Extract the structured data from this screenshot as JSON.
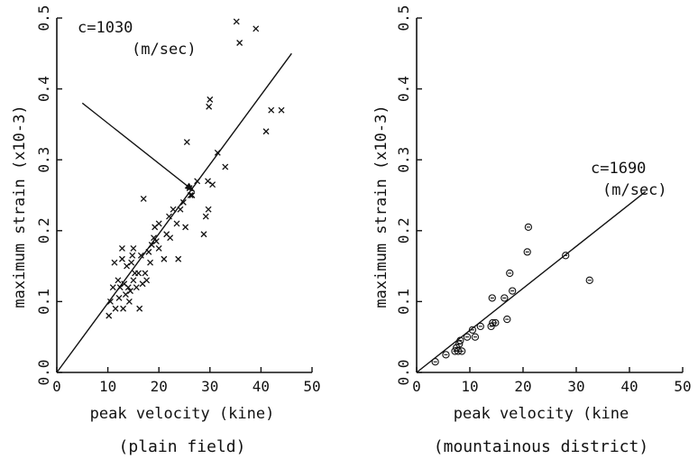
{
  "chart_data": [
    {
      "type": "scatter",
      "caption": "(plain field)",
      "xlabel": "peak velocity (kine)",
      "ylabel": "maximum strain (x10-3)",
      "xlim": [
        0,
        50
      ],
      "ylim": [
        0,
        0.5
      ],
      "xticks": [
        {
          "value": 0,
          "label": "0"
        },
        {
          "value": 10,
          "label": "10"
        },
        {
          "value": 20,
          "label": "20"
        },
        {
          "value": 30,
          "label": "30"
        },
        {
          "value": 40,
          "label": "40"
        },
        {
          "value": 50,
          "label": "50"
        }
      ],
      "yticks": [
        {
          "value": 0.0,
          "label": "0.0"
        },
        {
          "value": 0.1,
          "label": "0.1"
        },
        {
          "value": 0.2,
          "label": "0.2"
        },
        {
          "value": 0.3,
          "label": "0.3"
        },
        {
          "value": 0.4,
          "label": "0.4"
        },
        {
          "value": 0.5,
          "label": "0.5"
        }
      ],
      "marker": "x",
      "grid": false,
      "fit_line": {
        "from": [
          0,
          0
        ],
        "to": [
          46,
          0.45
        ],
        "label_line1": "c=1030",
        "label_line2": "(m/sec)"
      },
      "arrow": {
        "from": [
          5,
          0.38
        ],
        "to": [
          27,
          0.255
        ]
      },
      "points": [
        [
          10.2,
          0.08
        ],
        [
          10.5,
          0.1
        ],
        [
          11,
          0.12
        ],
        [
          11.3,
          0.155
        ],
        [
          11.5,
          0.09
        ],
        [
          12,
          0.13
        ],
        [
          12.2,
          0.105
        ],
        [
          12.4,
          0.12
        ],
        [
          12.8,
          0.16
        ],
        [
          12.8,
          0.175
        ],
        [
          13,
          0.09
        ],
        [
          13.2,
          0.125
        ],
        [
          13.5,
          0.11
        ],
        [
          13.7,
          0.15
        ],
        [
          14,
          0.12
        ],
        [
          14.2,
          0.1
        ],
        [
          14.4,
          0.115
        ],
        [
          14.6,
          0.155
        ],
        [
          14.8,
          0.165
        ],
        [
          15,
          0.13
        ],
        [
          15,
          0.175
        ],
        [
          15.3,
          0.14
        ],
        [
          15.6,
          0.12
        ],
        [
          16,
          0.14
        ],
        [
          16.2,
          0.09
        ],
        [
          16.5,
          0.165
        ],
        [
          16.8,
          0.125
        ],
        [
          17,
          0.245
        ],
        [
          17.3,
          0.14
        ],
        [
          17.6,
          0.13
        ],
        [
          18,
          0.17
        ],
        [
          18.3,
          0.155
        ],
        [
          18.6,
          0.18
        ],
        [
          19,
          0.19
        ],
        [
          19.2,
          0.205
        ],
        [
          19.5,
          0.185
        ],
        [
          20,
          0.175
        ],
        [
          20,
          0.21
        ],
        [
          21,
          0.16
        ],
        [
          21.5,
          0.195
        ],
        [
          22,
          0.22
        ],
        [
          22.2,
          0.19
        ],
        [
          22.8,
          0.23
        ],
        [
          23.5,
          0.21
        ],
        [
          23.8,
          0.16
        ],
        [
          24.2,
          0.23
        ],
        [
          24.8,
          0.24
        ],
        [
          25.2,
          0.205
        ],
        [
          25.5,
          0.325
        ],
        [
          26,
          0.26
        ],
        [
          26.2,
          0.25
        ],
        [
          26.5,
          0.25
        ],
        [
          27.5,
          0.27
        ],
        [
          28.8,
          0.195
        ],
        [
          29.2,
          0.22
        ],
        [
          29.6,
          0.27
        ],
        [
          29.7,
          0.23
        ],
        [
          29.8,
          0.375
        ],
        [
          30,
          0.385
        ],
        [
          30.5,
          0.265
        ],
        [
          31.5,
          0.31
        ],
        [
          33,
          0.29
        ],
        [
          35.2,
          0.495
        ],
        [
          35.8,
          0.465
        ],
        [
          39,
          0.485
        ],
        [
          41,
          0.34
        ],
        [
          42,
          0.37
        ],
        [
          44,
          0.37
        ]
      ]
    },
    {
      "type": "scatter",
      "caption": "(mountainous district)",
      "xlabel": "peak velocity (kine",
      "ylabel": "maximum strain (x10-3)",
      "xlim": [
        0,
        50
      ],
      "ylim": [
        0,
        0.5
      ],
      "xticks": [
        {
          "value": 0,
          "label": "0"
        },
        {
          "value": 10,
          "label": "10"
        },
        {
          "value": 20,
          "label": "20"
        },
        {
          "value": 30,
          "label": "30"
        },
        {
          "value": 40,
          "label": "40"
        },
        {
          "value": 50,
          "label": "50"
        }
      ],
      "yticks": [
        {
          "value": 0.0,
          "label": "0.0"
        },
        {
          "value": 0.1,
          "label": "0.1"
        },
        {
          "value": 0.2,
          "label": "0.2"
        },
        {
          "value": 0.3,
          "label": "0.3"
        },
        {
          "value": 0.4,
          "label": "0.4"
        },
        {
          "value": 0.5,
          "label": "0.5"
        }
      ],
      "marker": "circle",
      "grid": false,
      "fit_line": {
        "from": [
          0,
          0
        ],
        "to": [
          43,
          0.255
        ],
        "label_line1": "c=1690",
        "label_line2": "(m/sec)"
      },
      "points": [
        [
          3.5,
          0.015
        ],
        [
          5.5,
          0.025
        ],
        [
          7.2,
          0.03
        ],
        [
          7.5,
          0.035
        ],
        [
          7.8,
          0.03
        ],
        [
          8,
          0.04
        ],
        [
          8.2,
          0.045
        ],
        [
          8.5,
          0.03
        ],
        [
          9.5,
          0.05
        ],
        [
          10.5,
          0.06
        ],
        [
          11,
          0.05
        ],
        [
          12,
          0.065
        ],
        [
          14,
          0.065
        ],
        [
          14.3,
          0.07
        ],
        [
          14.8,
          0.07
        ],
        [
          14.2,
          0.105
        ],
        [
          16.5,
          0.105
        ],
        [
          17,
          0.075
        ],
        [
          17.5,
          0.14
        ],
        [
          18,
          0.115
        ],
        [
          21,
          0.205
        ],
        [
          20.8,
          0.17
        ],
        [
          28,
          0.165
        ],
        [
          32.5,
          0.13
        ]
      ]
    }
  ]
}
